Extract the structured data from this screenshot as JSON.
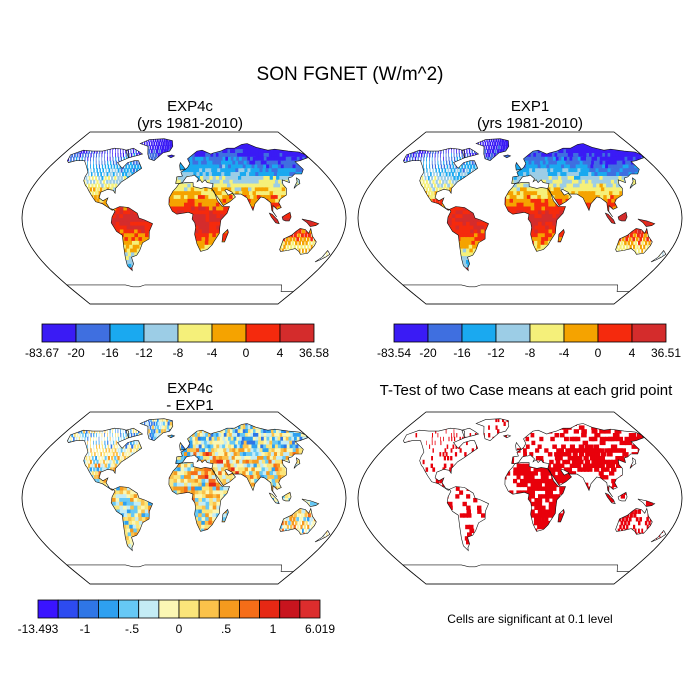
{
  "title": "SON FGNET (W/m^2)",
  "panels": [
    {
      "id": "exp4c",
      "title_line1": "EXP4c",
      "title_line2": "(yrs 1981-2010)",
      "colorbar": {
        "labels": [
          "-83.67",
          "-20",
          "-16",
          "-12",
          "-8",
          "-4",
          "0",
          "4",
          "36.58"
        ],
        "colors": [
          "#3a1bf5",
          "#3f6fe0",
          "#1aa9f0",
          "#9ccde6",
          "#f5f07a",
          "#f5a300",
          "#f52a0d",
          "#d42c2c"
        ]
      }
    },
    {
      "id": "exp1",
      "title_line1": "EXP1",
      "title_line2": "(yrs 1981-2010)",
      "colorbar": {
        "labels": [
          "-83.54",
          "-20",
          "-16",
          "-12",
          "-8",
          "-4",
          "0",
          "4",
          "36.51"
        ],
        "colors": [
          "#3a1bf5",
          "#3f6fe0",
          "#1aa9f0",
          "#9ccde6",
          "#f5f07a",
          "#f5a300",
          "#f52a0d",
          "#d42c2c"
        ]
      }
    },
    {
      "id": "diff",
      "title_line1": "EXP4c",
      "title_line2": "- EXP1",
      "colorbar": {
        "labels": [
          "-13.493",
          "-1",
          "-.5",
          "0",
          ".5",
          "1",
          "6.019"
        ],
        "colors": [
          "#3a14ff",
          "#2d4bf0",
          "#2f76e6",
          "#2ea0f0",
          "#66c8f5",
          "#c4ecf5",
          "#fbf7b4",
          "#fbe57a",
          "#fbc24a",
          "#f59a1e",
          "#f56d18",
          "#e62814",
          "#c8141e",
          "#dc2d2d"
        ]
      }
    },
    {
      "id": "ttest",
      "title_line1": "T-Test of two Case means at each grid point",
      "note": "Cells are significant at 0.1 level",
      "colors": {
        "significant": "#e8000b"
      }
    }
  ]
}
